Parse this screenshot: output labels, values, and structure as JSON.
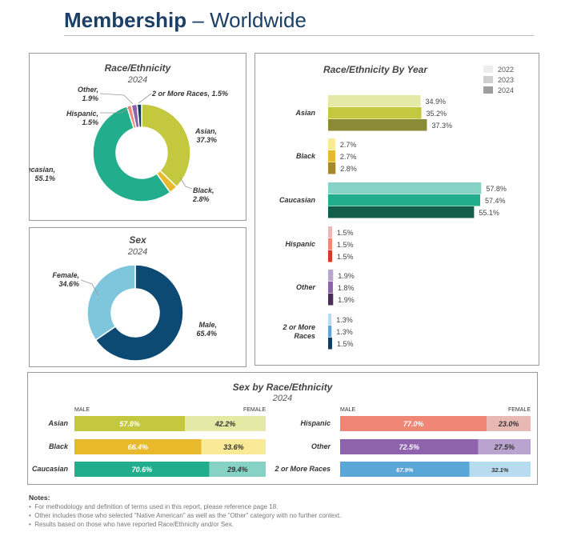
{
  "header": {
    "title_bold": "Membership",
    "title_rest": " – Worldwide"
  },
  "colors": {
    "asian": [
      "#e4e9a6",
      "#c4c83f",
      "#8a8b36"
    ],
    "black": [
      "#f9ea98",
      "#e8b92b",
      "#a8862d"
    ],
    "caucasian": [
      "#86d3c5",
      "#22ae8c",
      "#135e4a"
    ],
    "hispanic": [
      "#e7b8b4",
      "#ef8676",
      "#d9362b"
    ],
    "other": [
      "#b8a4cf",
      "#8f62ae",
      "#4a2d5b"
    ],
    "multi": [
      "#b8dcef",
      "#5aa6d6",
      "#123d60"
    ],
    "male": "#0d4a73",
    "female": "#7dc6dc"
  },
  "panels": {
    "race_pie": {
      "title": "Race/Ethnicity",
      "subtitle": "2024"
    },
    "sex_pie": {
      "title": "Sex",
      "subtitle": "2024"
    },
    "race_by_year": {
      "title": "Race/Ethnicity By Year"
    },
    "sex_by_race": {
      "title": "Sex by Race/Ethnicity",
      "subtitle": "2024"
    }
  },
  "chart_data": [
    {
      "type": "pie",
      "title": "Race/Ethnicity",
      "subtitle": "2024",
      "slices": [
        {
          "label": "Asian,",
          "value": 37.3,
          "text": "37.3%",
          "color": "#c4c83f"
        },
        {
          "label": "Black,",
          "value": 2.8,
          "text": "2.8%",
          "color": "#e8b92b"
        },
        {
          "label": "Caucasian,",
          "value": 55.1,
          "text": "55.1%",
          "color": "#22ae8c"
        },
        {
          "label": "Hispanic,",
          "value": 1.5,
          "text": "1.5%",
          "color": "#ef8676"
        },
        {
          "label": "Other,",
          "value": 1.9,
          "text": "1.9%",
          "color": "#8f62ae"
        },
        {
          "label": "2 or More Races, 1.5%",
          "value": 1.5,
          "text": "",
          "color": "#123d60"
        }
      ]
    },
    {
      "type": "pie",
      "title": "Sex",
      "subtitle": "2024",
      "slices": [
        {
          "label": "Male,",
          "value": 65.4,
          "text": "65.4%",
          "color": "#0d4a73"
        },
        {
          "label": "Female,",
          "value": 34.6,
          "text": "34.6%",
          "color": "#7dc6dc"
        }
      ]
    },
    {
      "type": "bar",
      "orientation": "horizontal",
      "title": "Race/Ethnicity By Year",
      "legend": [
        "2022",
        "2023",
        "2024"
      ],
      "legend_position": "top-right",
      "categories": [
        "Asian",
        "Black",
        "Caucasian",
        "Hispanic",
        "Other",
        "2 or More Races"
      ],
      "series": [
        {
          "name": "2022",
          "values": [
            34.9,
            2.7,
            57.8,
            1.5,
            1.9,
            1.3
          ]
        },
        {
          "name": "2023",
          "values": [
            35.2,
            2.7,
            57.4,
            1.5,
            1.8,
            1.3
          ]
        },
        {
          "name": "2024",
          "values": [
            37.3,
            2.8,
            55.1,
            1.5,
            1.9,
            1.5
          ]
        }
      ],
      "xlim": [
        0,
        60
      ]
    },
    {
      "type": "bar",
      "orientation": "horizontal",
      "stacked": true,
      "title": "Sex by Race/Ethnicity",
      "subtitle": "2024",
      "column_labels": [
        "MALE",
        "FEMALE"
      ],
      "categories": [
        "Asian",
        "Black",
        "Caucasian",
        "Hispanic",
        "Other",
        "2 or More Races"
      ],
      "series": [
        {
          "name": "MALE",
          "values": [
            57.8,
            66.4,
            70.6,
            77.0,
            72.5,
            67.9
          ]
        },
        {
          "name": "FEMALE",
          "values": [
            42.2,
            33.6,
            29.4,
            23.0,
            27.5,
            32.1
          ]
        }
      ]
    }
  ],
  "notes": {
    "heading": "Notes:",
    "items": [
      "For methodology and definition of terms used in this report, please reference page 18.",
      "Other includes those who selected \"Native American\" as well as the \"Other\" category with no further context.",
      "Results based on those who have reported Race/Ethnicity and/or Sex."
    ]
  }
}
